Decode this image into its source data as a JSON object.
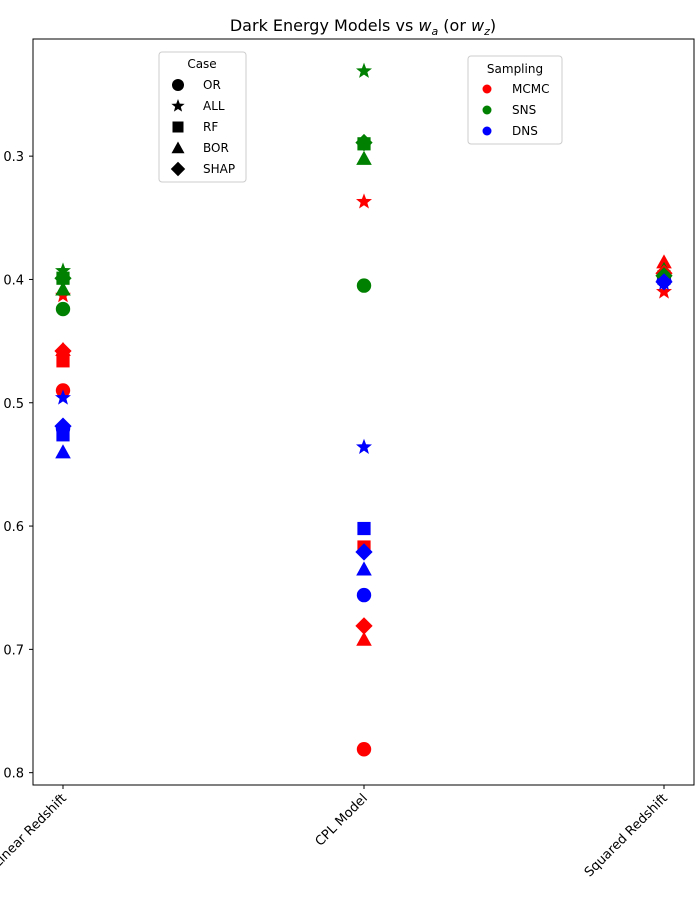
{
  "chart_data": {
    "type": "scatter",
    "title_prefix": "Dark Energy Models vs ",
    "title_var1_base": "w",
    "title_var1_sub": "a",
    "title_middle": " (or ",
    "title_var2_base": "w",
    "title_var2_sub": "z",
    "title_suffix": ")",
    "categories": [
      "Linear Redshift",
      "CPL Model",
      "Squared Redshift"
    ],
    "ylim": [
      -0.81,
      -0.205
    ],
    "yticks": [
      {
        "value": -0.3,
        "label": "0.3"
      },
      {
        "value": -0.4,
        "label": "0.4"
      },
      {
        "value": -0.5,
        "label": "0.5"
      },
      {
        "value": -0.6,
        "label": "0.6"
      },
      {
        "value": -0.7,
        "label": "0.7"
      },
      {
        "value": -0.8,
        "label": "0.8"
      }
    ],
    "case_legend": {
      "title": "Case",
      "entries": [
        {
          "key": "OR",
          "label": "OR",
          "marker": "circle"
        },
        {
          "key": "ALL",
          "label": "ALL",
          "marker": "star"
        },
        {
          "key": "RF",
          "label": "RF",
          "marker": "square"
        },
        {
          "key": "BOR",
          "label": "BOR",
          "marker": "triangle"
        },
        {
          "key": "SHAP",
          "label": "SHAP",
          "marker": "diamond"
        }
      ]
    },
    "sampling_legend": {
      "title": "Sampling",
      "entries": [
        {
          "key": "MCMC",
          "label": "MCMC",
          "color": "#ff0000"
        },
        {
          "key": "SNS",
          "label": "SNS",
          "color": "#008000"
        },
        {
          "key": "DNS",
          "label": "DNS",
          "color": "#0000ff"
        }
      ]
    },
    "points": [
      {
        "category": 0,
        "sampling": "MCMC",
        "case": "OR",
        "y": -0.49
      },
      {
        "category": 0,
        "sampling": "MCMC",
        "case": "ALL",
        "y": -0.413
      },
      {
        "category": 0,
        "sampling": "MCMC",
        "case": "RF",
        "y": -0.466
      },
      {
        "category": 0,
        "sampling": "MCMC",
        "case": "BOR",
        "y": -0.457
      },
      {
        "category": 0,
        "sampling": "MCMC",
        "case": "SHAP",
        "y": -0.458
      },
      {
        "category": 0,
        "sampling": "SNS",
        "case": "OR",
        "y": -0.424
      },
      {
        "category": 0,
        "sampling": "SNS",
        "case": "ALL",
        "y": -0.393
      },
      {
        "category": 0,
        "sampling": "SNS",
        "case": "RF",
        "y": -0.399
      },
      {
        "category": 0,
        "sampling": "SNS",
        "case": "BOR",
        "y": -0.408
      },
      {
        "category": 0,
        "sampling": "SNS",
        "case": "SHAP",
        "y": -0.399
      },
      {
        "category": 0,
        "sampling": "DNS",
        "case": "OR",
        "y": -0.521
      },
      {
        "category": 0,
        "sampling": "DNS",
        "case": "ALL",
        "y": -0.496
      },
      {
        "category": 0,
        "sampling": "DNS",
        "case": "RF",
        "y": -0.526
      },
      {
        "category": 0,
        "sampling": "DNS",
        "case": "BOR",
        "y": -0.54
      },
      {
        "category": 0,
        "sampling": "DNS",
        "case": "SHAP",
        "y": -0.519
      },
      {
        "category": 1,
        "sampling": "MCMC",
        "case": "OR",
        "y": -0.781
      },
      {
        "category": 1,
        "sampling": "MCMC",
        "case": "ALL",
        "y": -0.337
      },
      {
        "category": 1,
        "sampling": "MCMC",
        "case": "RF",
        "y": -0.617
      },
      {
        "category": 1,
        "sampling": "MCMC",
        "case": "BOR",
        "y": -0.692
      },
      {
        "category": 1,
        "sampling": "MCMC",
        "case": "SHAP",
        "y": -0.681
      },
      {
        "category": 1,
        "sampling": "SNS",
        "case": "OR",
        "y": -0.405
      },
      {
        "category": 1,
        "sampling": "SNS",
        "case": "ALL",
        "y": -0.231
      },
      {
        "category": 1,
        "sampling": "SNS",
        "case": "RF",
        "y": -0.29
      },
      {
        "category": 1,
        "sampling": "SNS",
        "case": "BOR",
        "y": -0.302
      },
      {
        "category": 1,
        "sampling": "SNS",
        "case": "SHAP",
        "y": -0.289
      },
      {
        "category": 1,
        "sampling": "DNS",
        "case": "OR",
        "y": -0.656
      },
      {
        "category": 1,
        "sampling": "DNS",
        "case": "ALL",
        "y": -0.536
      },
      {
        "category": 1,
        "sampling": "DNS",
        "case": "RF",
        "y": -0.602
      },
      {
        "category": 1,
        "sampling": "DNS",
        "case": "BOR",
        "y": -0.635
      },
      {
        "category": 1,
        "sampling": "DNS",
        "case": "SHAP",
        "y": -0.621
      },
      {
        "category": 2,
        "sampling": "MCMC",
        "case": "OR",
        "y": -0.396
      },
      {
        "category": 2,
        "sampling": "MCMC",
        "case": "ALL",
        "y": -0.41
      },
      {
        "category": 2,
        "sampling": "MCMC",
        "case": "RF",
        "y": -0.398
      },
      {
        "category": 2,
        "sampling": "MCMC",
        "case": "BOR",
        "y": -0.386
      },
      {
        "category": 2,
        "sampling": "MCMC",
        "case": "SHAP",
        "y": -0.395
      },
      {
        "category": 2,
        "sampling": "SNS",
        "case": "OR",
        "y": -0.398
      },
      {
        "category": 2,
        "sampling": "SNS",
        "case": "ALL",
        "y": -0.397
      },
      {
        "category": 2,
        "sampling": "SNS",
        "case": "RF",
        "y": -0.398
      },
      {
        "category": 2,
        "sampling": "SNS",
        "case": "BOR",
        "y": -0.392
      },
      {
        "category": 2,
        "sampling": "SNS",
        "case": "SHAP",
        "y": -0.397
      },
      {
        "category": 2,
        "sampling": "DNS",
        "case": "OR",
        "y": -0.401
      },
      {
        "category": 2,
        "sampling": "DNS",
        "case": "ALL",
        "y": -0.403
      },
      {
        "category": 2,
        "sampling": "DNS",
        "case": "RF",
        "y": -0.399
      },
      {
        "category": 2,
        "sampling": "DNS",
        "case": "BOR",
        "y": -0.396
      },
      {
        "category": 2,
        "sampling": "DNS",
        "case": "SHAP",
        "y": -0.402
      }
    ],
    "grid": false,
    "legend_placement": [
      "upper-left",
      "upper-right"
    ]
  }
}
